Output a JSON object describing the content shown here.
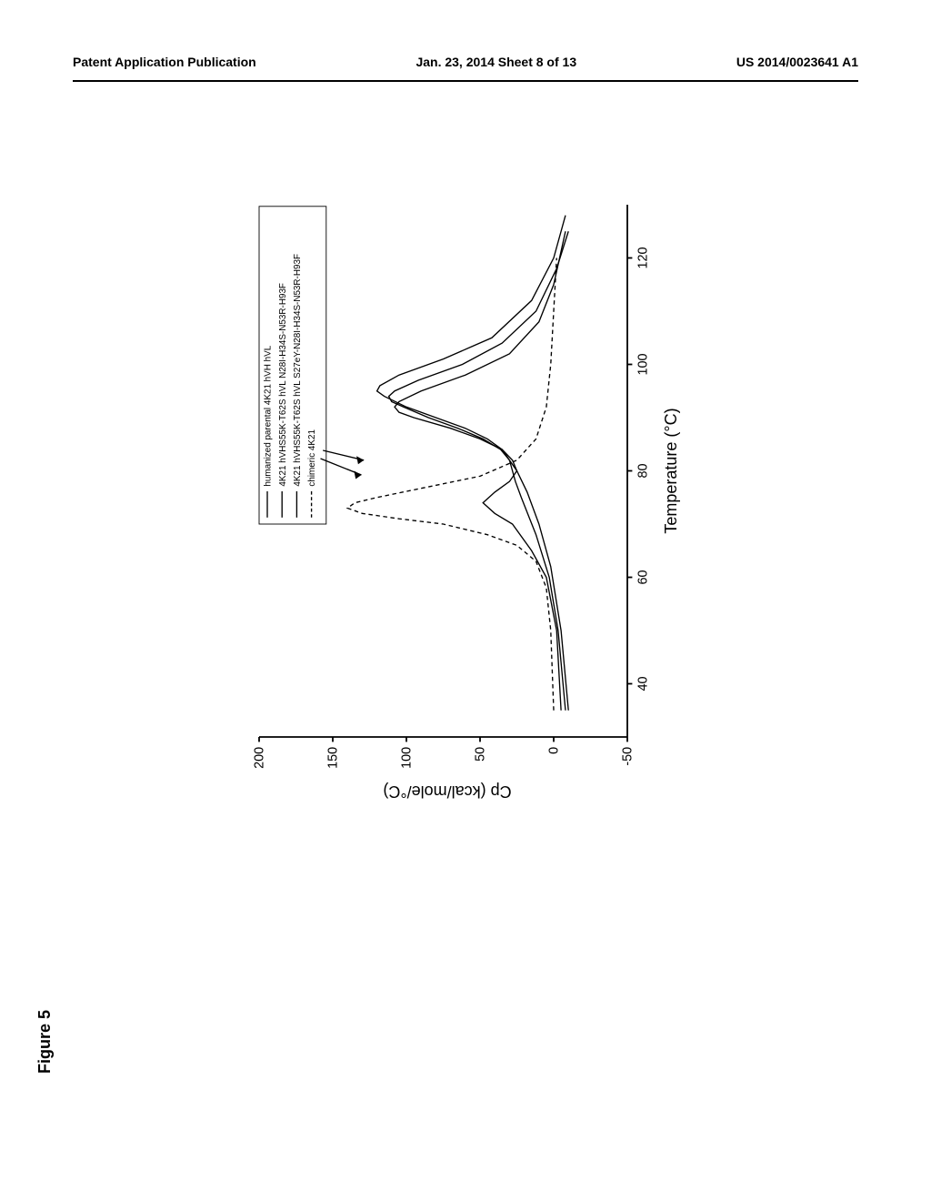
{
  "header": {
    "left": "Patent Application Publication",
    "center": "Jan. 23, 2014  Sheet 8 of 13",
    "right": "US 2014/0023641 A1"
  },
  "figure": {
    "label": "Figure 5",
    "chart": {
      "type": "line",
      "xlabel": "Temperature (°C)",
      "ylabel": "Cp (kcal/mole/°C)",
      "xlim": [
        30,
        130
      ],
      "ylim": [
        -50,
        200
      ],
      "xticks": [
        40,
        60,
        80,
        100,
        120
      ],
      "yticks": [
        -50,
        0,
        50,
        100,
        150,
        200
      ],
      "background_color": "#ffffff",
      "axis_color": "#000000",
      "line_width": 1.5,
      "series": [
        {
          "name": "humanized parental 4K21 hVH hVL",
          "style": "solid",
          "color": "#000000",
          "points": [
            [
              35,
              -5
            ],
            [
              50,
              -2
            ],
            [
              60,
              5
            ],
            [
              65,
              15
            ],
            [
              70,
              28
            ],
            [
              72,
              40
            ],
            [
              74,
              48
            ],
            [
              76,
              40
            ],
            [
              78,
              30
            ],
            [
              80,
              25
            ],
            [
              82,
              28
            ],
            [
              84,
              35
            ],
            [
              86,
              50
            ],
            [
              88,
              70
            ],
            [
              90,
              95
            ],
            [
              91,
              105
            ],
            [
              92,
              108
            ],
            [
              93,
              105
            ],
            [
              95,
              90
            ],
            [
              98,
              60
            ],
            [
              102,
              30
            ],
            [
              108,
              10
            ],
            [
              115,
              0
            ],
            [
              125,
              -8
            ]
          ]
        },
        {
          "name": "4K21 hVHS55K-T62S hVL N28I-H34S-N53R-H93F",
          "style": "solid",
          "color": "#000000",
          "points": [
            [
              35,
              -8
            ],
            [
              50,
              -3
            ],
            [
              60,
              3
            ],
            [
              68,
              12
            ],
            [
              75,
              22
            ],
            [
              78,
              26
            ],
            [
              80,
              28
            ],
            [
              82,
              30
            ],
            [
              84,
              36
            ],
            [
              86,
              48
            ],
            [
              88,
              65
            ],
            [
              90,
              85
            ],
            [
              92,
              102
            ],
            [
              93,
              110
            ],
            [
              94,
              112
            ],
            [
              95,
              108
            ],
            [
              97,
              92
            ],
            [
              100,
              62
            ],
            [
              104,
              35
            ],
            [
              110,
              12
            ],
            [
              118,
              -2
            ],
            [
              125,
              -10
            ]
          ]
        },
        {
          "name": "4K21 hVHS55K-T62S hVL S27eY-N28I-H34S-N53R-H93F",
          "style": "solid",
          "color": "#000000",
          "points": [
            [
              35,
              -10
            ],
            [
              50,
              -5
            ],
            [
              62,
              2
            ],
            [
              70,
              10
            ],
            [
              76,
              18
            ],
            [
              80,
              25
            ],
            [
              84,
              35
            ],
            [
              86,
              45
            ],
            [
              88,
              60
            ],
            [
              90,
              80
            ],
            [
              92,
              100
            ],
            [
              94,
              115
            ],
            [
              95,
              120
            ],
            [
              96,
              118
            ],
            [
              98,
              105
            ],
            [
              101,
              75
            ],
            [
              105,
              42
            ],
            [
              112,
              15
            ],
            [
              120,
              0
            ],
            [
              128,
              -8
            ]
          ]
        },
        {
          "name": "chimeric 4K21",
          "style": "dashed",
          "color": "#000000",
          "points": [
            [
              35,
              0
            ],
            [
              50,
              2
            ],
            [
              58,
              5
            ],
            [
              63,
              12
            ],
            [
              66,
              25
            ],
            [
              68,
              45
            ],
            [
              70,
              75
            ],
            [
              71,
              105
            ],
            [
              72,
              130
            ],
            [
              73,
              140
            ],
            [
              74,
              135
            ],
            [
              75,
              120
            ],
            [
              77,
              85
            ],
            [
              79,
              50
            ],
            [
              82,
              25
            ],
            [
              86,
              12
            ],
            [
              92,
              5
            ],
            [
              100,
              2
            ],
            [
              110,
              0
            ],
            [
              120,
              -2
            ]
          ]
        }
      ],
      "legend": {
        "position": "top-right",
        "items": [
          "humanized parental 4K21 hVH hVL",
          "4K21 hVHS55K-T62S hVL N28I-H34S-N53R-H93F",
          "4K21 hVHS55K-T62S hVL S27eY-N28I-H34S-N53R-H93F",
          "chimeric 4K21"
        ]
      }
    }
  }
}
